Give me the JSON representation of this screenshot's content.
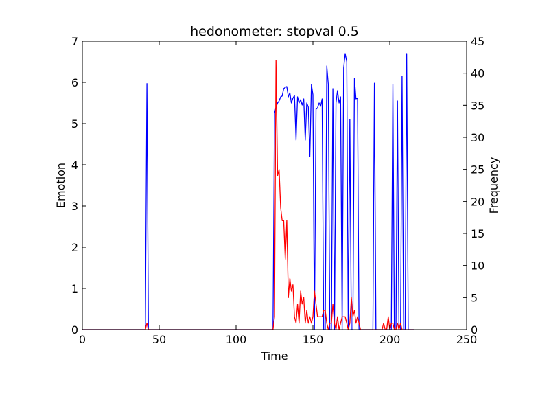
{
  "chart_data": {
    "type": "line",
    "title": "hedonometer: stopval 0.5",
    "xlabel": "Time",
    "ylabel": "Emotion",
    "y2label": "Frequency",
    "xlim": [
      0,
      250
    ],
    "ylim": [
      0,
      7
    ],
    "y2lim": [
      0,
      45
    ],
    "xticks": [
      0,
      50,
      100,
      150,
      200,
      250
    ],
    "yticks": [
      0,
      1,
      2,
      3,
      4,
      5,
      6,
      7
    ],
    "y2ticks": [
      0,
      5,
      10,
      15,
      20,
      25,
      30,
      35,
      40,
      45
    ],
    "grid": false,
    "series": [
      {
        "axis": "left",
        "color": "#0000ff",
        "x": [
          0,
          41,
          42,
          43,
          124,
          125,
          126,
          127,
          128,
          129,
          130,
          131,
          132,
          133,
          134,
          135,
          136,
          137,
          138,
          139,
          140,
          141,
          142,
          143,
          144,
          145,
          146,
          147,
          148,
          149,
          150,
          151,
          152,
          153,
          154,
          155,
          156,
          157,
          158,
          159,
          160,
          161,
          162,
          163,
          164,
          165,
          166,
          167,
          168,
          169,
          170,
          171,
          172,
          173,
          174,
          175,
          176,
          177,
          178,
          179,
          180,
          181,
          182,
          183,
          184,
          185,
          186,
          187,
          188,
          189,
          190,
          191,
          192,
          193,
          194,
          195,
          196,
          197,
          198,
          199,
          200,
          201,
          202,
          203,
          204,
          205,
          206,
          207,
          208,
          209,
          210,
          211,
          212,
          213,
          214,
          215,
          216
        ],
        "y": [
          0,
          0,
          5.97,
          0,
          0,
          5.25,
          5.4,
          5.5,
          5.55,
          5.65,
          5.67,
          5.85,
          5.88,
          5.9,
          5.65,
          5.75,
          5.5,
          5.62,
          5.68,
          4.6,
          5.65,
          5.5,
          5.58,
          5.45,
          5.6,
          4.6,
          5.5,
          5.4,
          4.2,
          5.95,
          5.7,
          0,
          5.35,
          5.38,
          5.5,
          5.42,
          5.6,
          0,
          0,
          6.4,
          5.95,
          0,
          0,
          5.85,
          0,
          5.5,
          5.8,
          5.5,
          5.65,
          0,
          6.35,
          6.7,
          6.5,
          0,
          5.1,
          0,
          0,
          6.1,
          5.6,
          5.62,
          0,
          0,
          0,
          0,
          0,
          0,
          0,
          0,
          0,
          0,
          5.98,
          0,
          0,
          0,
          0,
          0,
          0,
          0,
          0,
          0,
          0,
          0,
          5.95,
          0,
          0,
          5.55,
          0,
          0,
          6.15,
          0,
          0,
          6.7,
          0,
          0,
          0,
          0,
          0
        ]
      },
      {
        "axis": "right",
        "color": "#ff0000",
        "x": [
          0,
          41,
          42,
          43,
          124,
          125,
          126,
          127,
          128,
          129,
          130,
          131,
          132,
          133,
          134,
          135,
          136,
          137,
          138,
          139,
          140,
          141,
          142,
          143,
          144,
          145,
          146,
          147,
          148,
          149,
          150,
          151,
          152,
          153,
          154,
          155,
          156,
          157,
          158,
          159,
          160,
          161,
          162,
          163,
          164,
          165,
          166,
          167,
          168,
          169,
          170,
          171,
          172,
          173,
          174,
          175,
          176,
          177,
          178,
          179,
          180,
          181,
          182,
          183,
          184,
          185,
          186,
          187,
          188,
          189,
          190,
          191,
          192,
          193,
          194,
          195,
          196,
          197,
          198,
          199,
          200,
          201,
          202,
          203,
          204,
          205,
          206,
          207,
          208,
          209,
          210,
          211,
          212,
          213,
          214,
          215,
          216
        ],
        "y": [
          0,
          0,
          1,
          0,
          0,
          2,
          42,
          24,
          25,
          19,
          17,
          17,
          11,
          17,
          5,
          8,
          6,
          7,
          2,
          1,
          4,
          1,
          6,
          4,
          5,
          1,
          3,
          1,
          2,
          1,
          2,
          6,
          4,
          2,
          2,
          2,
          2,
          3,
          3,
          1,
          0,
          1,
          1,
          4,
          1,
          0,
          2,
          0,
          1,
          2,
          2,
          2,
          1,
          0,
          1,
          5,
          2,
          3,
          1,
          2,
          1,
          0,
          0,
          0,
          0,
          0,
          0,
          0,
          0,
          0,
          0,
          0,
          0,
          0,
          0,
          0,
          1,
          0,
          0,
          2,
          0,
          1,
          1,
          0,
          0,
          1,
          0,
          1,
          0,
          0,
          0,
          0,
          0,
          0,
          0,
          0,
          0
        ]
      }
    ]
  }
}
